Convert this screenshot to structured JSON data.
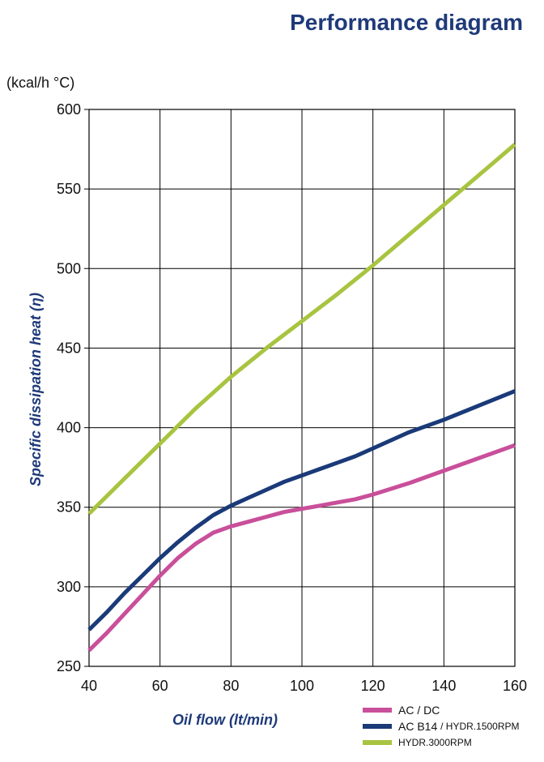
{
  "page": {
    "title": "Performance diagram"
  },
  "chart_data": {
    "type": "line",
    "title": "Performance diagram",
    "ylabel": "Specific dissipation heat (η)",
    "yunit": "(kcal/h °C)",
    "xlabel": "Oil  flow  (lt/min)",
    "xlim": [
      40,
      160
    ],
    "ylim": [
      250,
      600
    ],
    "xticks": [
      40,
      60,
      80,
      100,
      120,
      140,
      160
    ],
    "yticks": [
      250,
      300,
      350,
      400,
      450,
      500,
      550,
      600
    ],
    "grid": true,
    "legend_position": "bottom-right",
    "series": [
      {
        "name": "AC / DC",
        "color": "#c94f9a",
        "x": [
          40,
          45,
          50,
          55,
          60,
          65,
          70,
          75,
          80,
          85,
          90,
          95,
          100,
          105,
          110,
          115,
          120,
          130,
          140,
          150,
          160
        ],
        "y": [
          260,
          271,
          283,
          295,
          307,
          318,
          327,
          334,
          338,
          341,
          344,
          347,
          349,
          351,
          353,
          355,
          358,
          365,
          373,
          381,
          389
        ]
      },
      {
        "name": "AC B14",
        "name_suffix": "/ HYDR.1500RPM",
        "color": "#1a3a78",
        "x": [
          40,
          45,
          50,
          55,
          60,
          65,
          70,
          75,
          80,
          85,
          90,
          95,
          100,
          105,
          110,
          115,
          120,
          130,
          140,
          150,
          160
        ],
        "y": [
          273,
          284,
          296,
          307,
          318,
          328,
          337,
          345,
          351,
          356,
          361,
          366,
          370,
          374,
          378,
          382,
          387,
          397,
          405,
          414,
          423
        ]
      },
      {
        "name": "HYDR.3000RPM",
        "color": "#a8c440",
        "x": [
          40,
          50,
          60,
          70,
          80,
          90,
          100,
          110,
          120,
          130,
          140,
          150,
          160
        ],
        "y": [
          346,
          368,
          390,
          412,
          432,
          450,
          467,
          484,
          502,
          521,
          540,
          559,
          578
        ]
      }
    ]
  }
}
